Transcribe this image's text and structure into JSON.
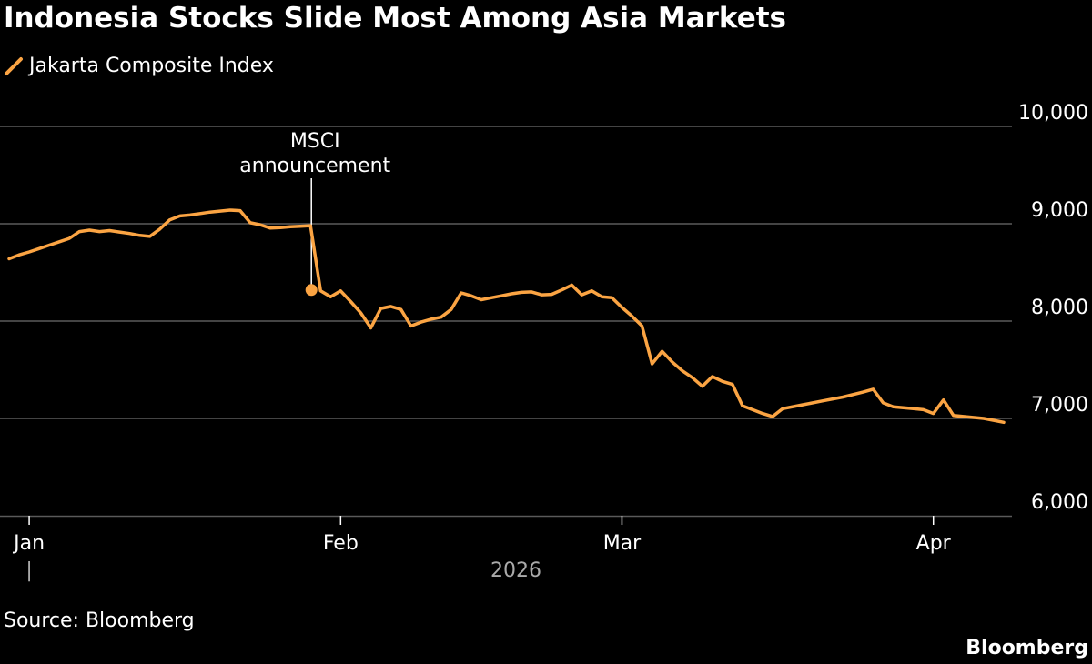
{
  "title": "Indonesia Stocks Slide Most Among Asia Markets",
  "source": "Source: Bloomberg",
  "brand": "Bloomberg",
  "colors": {
    "background": "#000000",
    "line": "#fba443",
    "grid": "#5a5a5a",
    "text": "#ffffff",
    "muted": "#aaaaaa"
  },
  "chart_data": {
    "type": "line",
    "title": "Indonesia Stocks Slide Most Among Asia Markets",
    "xlabel": "2026",
    "ylabel": "",
    "ylim": [
      6000,
      10000
    ],
    "grid": true,
    "legend_position": "top-left",
    "y_ticks": [
      {
        "value": 10000,
        "label": "10,000"
      },
      {
        "value": 9000,
        "label": "9,000"
      },
      {
        "value": 8000,
        "label": "8,000"
      },
      {
        "value": 7000,
        "label": "7,000"
      },
      {
        "value": 6000,
        "label": "6,000"
      }
    ],
    "x_ticks": [
      {
        "day": 3,
        "label": "Jan"
      },
      {
        "day": 34,
        "label": "Feb"
      },
      {
        "day": 62,
        "label": "Mar"
      },
      {
        "day": 93,
        "label": "Apr"
      }
    ],
    "x_range": [
      0,
      102
    ],
    "year_label": "2026",
    "year_marker": "|",
    "series": [
      {
        "name": "Jakarta Composite Index",
        "points": [
          [
            1,
            8640
          ],
          [
            2,
            8680
          ],
          [
            3,
            8710
          ],
          [
            4,
            8745
          ],
          [
            5,
            8780
          ],
          [
            6,
            8815
          ],
          [
            7,
            8850
          ],
          [
            8,
            8920
          ],
          [
            9,
            8935
          ],
          [
            10,
            8920
          ],
          [
            11,
            8930
          ],
          [
            12,
            8915
          ],
          [
            13,
            8900
          ],
          [
            14,
            8880
          ],
          [
            15,
            8870
          ],
          [
            16,
            8945
          ],
          [
            17,
            9040
          ],
          [
            18,
            9080
          ],
          [
            19,
            9090
          ],
          [
            20,
            9105
          ],
          [
            21,
            9120
          ],
          [
            22,
            9130
          ],
          [
            23,
            9140
          ],
          [
            24,
            9135
          ],
          [
            25,
            9010
          ],
          [
            26,
            8990
          ],
          [
            27,
            8955
          ],
          [
            28,
            8960
          ],
          [
            29,
            8970
          ],
          [
            30,
            8975
          ],
          [
            31,
            8980
          ],
          [
            32,
            8310
          ],
          [
            33,
            8250
          ],
          [
            34,
            8310
          ],
          [
            35,
            8200
          ],
          [
            36,
            8085
          ],
          [
            37,
            7930
          ],
          [
            38,
            8130
          ],
          [
            39,
            8150
          ],
          [
            40,
            8120
          ],
          [
            41,
            7950
          ],
          [
            42,
            7990
          ],
          [
            43,
            8020
          ],
          [
            44,
            8040
          ],
          [
            45,
            8120
          ],
          [
            46,
            8290
          ],
          [
            47,
            8260
          ],
          [
            48,
            8220
          ],
          [
            49,
            8240
          ],
          [
            50,
            8260
          ],
          [
            51,
            8280
          ],
          [
            52,
            8295
          ],
          [
            53,
            8300
          ],
          [
            54,
            8270
          ],
          [
            55,
            8275
          ],
          [
            56,
            8320
          ],
          [
            57,
            8370
          ],
          [
            58,
            8270
          ],
          [
            59,
            8310
          ],
          [
            60,
            8250
          ],
          [
            61,
            8240
          ],
          [
            62,
            8140
          ],
          [
            63,
            8050
          ],
          [
            64,
            7950
          ],
          [
            65,
            7560
          ],
          [
            66,
            7690
          ],
          [
            67,
            7580
          ],
          [
            68,
            7490
          ],
          [
            69,
            7420
          ],
          [
            70,
            7330
          ],
          [
            71,
            7430
          ],
          [
            72,
            7380
          ],
          [
            73,
            7350
          ],
          [
            74,
            7130
          ],
          [
            75,
            7090
          ],
          [
            76,
            7050
          ],
          [
            77,
            7020
          ],
          [
            78,
            7100
          ],
          [
            80,
            7140
          ],
          [
            82,
            7180
          ],
          [
            84,
            7220
          ],
          [
            86,
            7270
          ],
          [
            87,
            7300
          ],
          [
            88,
            7160
          ],
          [
            89,
            7120
          ],
          [
            90,
            7110
          ],
          [
            91,
            7100
          ],
          [
            92,
            7090
          ],
          [
            93,
            7050
          ],
          [
            94,
            7190
          ],
          [
            95,
            7030
          ],
          [
            96,
            7020
          ],
          [
            98,
            7000
          ],
          [
            99,
            6980
          ],
          [
            100,
            6960
          ]
        ]
      }
    ],
    "annotations": [
      {
        "day": 31,
        "value": 8320,
        "lines": [
          "MSCI",
          "announcement"
        ]
      }
    ]
  }
}
